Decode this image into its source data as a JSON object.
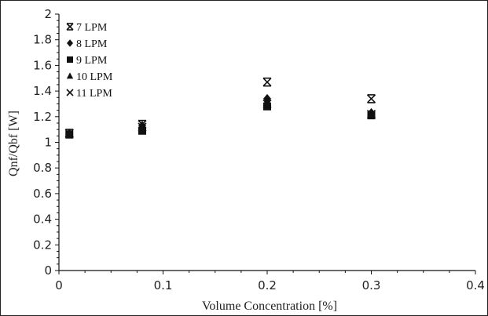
{
  "chart_data": {
    "type": "scatter",
    "xlabel": "Volume Concentration [%]",
    "ylabel": "Qnf/Qbf [W]",
    "xlim": [
      0,
      0.4
    ],
    "ylim": [
      0,
      2
    ],
    "xticks": [
      0,
      0.1,
      0.2,
      0.3,
      0.4
    ],
    "xtick_labels": [
      "0",
      "0.1",
      "0.2",
      "0.3",
      "0.4"
    ],
    "yticks": [
      0,
      0.2,
      0.4,
      0.6,
      0.8,
      1,
      1.2,
      1.4,
      1.6,
      1.8,
      2
    ],
    "ytick_labels": [
      "0",
      "0.2",
      "0.4",
      "0.6",
      "0.8",
      "1",
      "1.2",
      "1.4",
      "1.6",
      "1.8",
      "2"
    ],
    "grid": false,
    "legend_position": "top-left",
    "series": [
      {
        "name": "7 LPM",
        "marker": "asterisk",
        "x": [
          0.01,
          0.08,
          0.2,
          0.3
        ],
        "y": [
          1.07,
          1.14,
          1.47,
          1.34
        ]
      },
      {
        "name": "8 LPM",
        "marker": "diamond",
        "x": [
          0.01,
          0.08,
          0.2,
          0.3
        ],
        "y": [
          1.07,
          1.13,
          1.34,
          1.23
        ]
      },
      {
        "name": "9 LPM",
        "marker": "square",
        "x": [
          0.01,
          0.08,
          0.2,
          0.3
        ],
        "y": [
          1.06,
          1.09,
          1.28,
          1.21
        ]
      },
      {
        "name": "10 LPM",
        "marker": "triangle",
        "x": [
          0.01,
          0.08,
          0.2,
          0.3
        ],
        "y": [
          1.07,
          1.11,
          1.32,
          1.22
        ]
      },
      {
        "name": "11 LPM",
        "marker": "cross",
        "x": [
          0.01,
          0.08,
          0.2,
          0.3
        ],
        "y": [
          1.07,
          1.12,
          1.3,
          1.22
        ]
      }
    ]
  }
}
